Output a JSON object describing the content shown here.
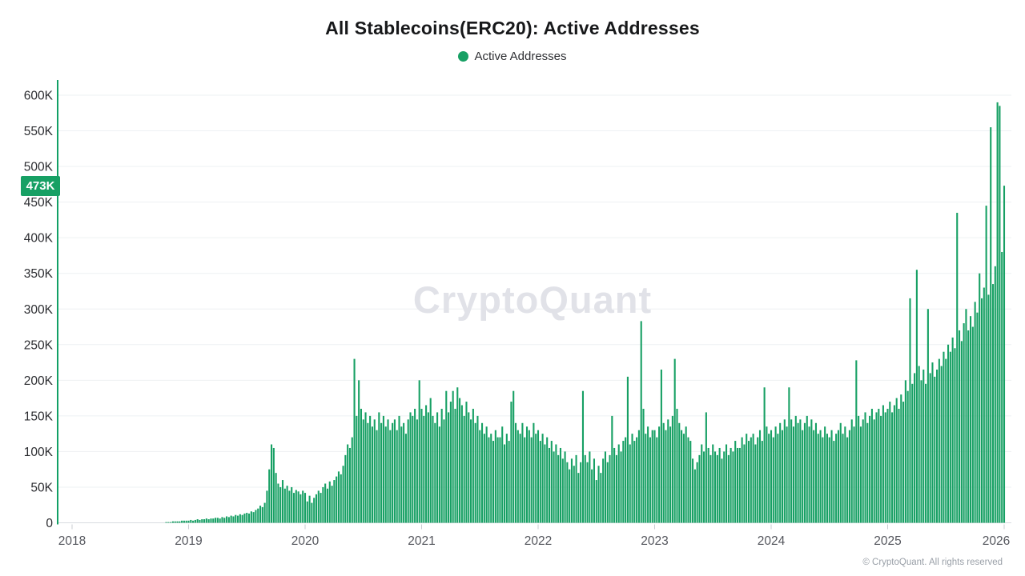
{
  "title": "All Stablecoins(ERC20): Active Addresses",
  "legend": {
    "label": "Active Addresses"
  },
  "watermark": {
    "text": "CryptoQuant"
  },
  "attribution": {
    "text": "© CryptoQuant. All rights reserved"
  },
  "badge": {
    "text": "473K"
  },
  "colors": {
    "bar_green": "#17a064",
    "axis_green": "#12a066",
    "badge_bg": "#17a064",
    "gridline": "#eef0f3",
    "baseline": "#d8dbe0",
    "tick": "#c9ccd2"
  },
  "chart_data": {
    "type": "bar",
    "title": "All Stablecoins(ERC20): Active Addresses",
    "series_name": "Active Addresses",
    "xlabel": "",
    "ylabel": "Active Addresses",
    "grid": true,
    "legend_position": "top-center",
    "x_tick_years": [
      2018,
      2019,
      2020,
      2021,
      2022,
      2023,
      2024,
      2025,
      2026
    ],
    "y_tick_values_k": [
      0,
      50,
      100,
      150,
      200,
      250,
      300,
      350,
      400,
      450,
      500,
      550,
      600
    ],
    "y_tick_labels": [
      "0",
      "50K",
      "100K",
      "150K",
      "200K",
      "250K",
      "300K",
      "350K",
      "400K",
      "450K",
      "500K",
      "550K",
      "600K"
    ],
    "ylim_k": [
      0,
      620
    ],
    "start_year": 2018,
    "points_per_year": 52,
    "unit": "thousands of addresses",
    "last_value_k": 473,
    "values_k": [
      0,
      0,
      0,
      0,
      0,
      0,
      0,
      0,
      0,
      0,
      0,
      0,
      0,
      0,
      0,
      0,
      0,
      0,
      0,
      0,
      0,
      0,
      0,
      0,
      0,
      0,
      0,
      0,
      0,
      0,
      0,
      0,
      0,
      0,
      0,
      0,
      0,
      0,
      0,
      0,
      0,
      0,
      1,
      1,
      1,
      2,
      2,
      2,
      2,
      3,
      3,
      3,
      3,
      4,
      3,
      4,
      5,
      4,
      5,
      5,
      6,
      5,
      6,
      6,
      7,
      7,
      6,
      8,
      7,
      9,
      8,
      10,
      9,
      11,
      10,
      12,
      11,
      13,
      14,
      13,
      16,
      15,
      18,
      20,
      24,
      22,
      28,
      45,
      75,
      110,
      105,
      70,
      55,
      50,
      60,
      48,
      52,
      45,
      50,
      42,
      46,
      44,
      40,
      45,
      42,
      30,
      38,
      28,
      35,
      40,
      45,
      42,
      50,
      55,
      48,
      58,
      52,
      60,
      65,
      72,
      68,
      80,
      95,
      110,
      105,
      120,
      230,
      150,
      200,
      160,
      145,
      155,
      140,
      150,
      135,
      145,
      130,
      155,
      140,
      150,
      135,
      145,
      130,
      140,
      145,
      130,
      150,
      135,
      140,
      125,
      145,
      155,
      150,
      160,
      145,
      200,
      160,
      150,
      165,
      155,
      175,
      150,
      140,
      155,
      135,
      160,
      145,
      185,
      155,
      170,
      185,
      160,
      190,
      175,
      165,
      150,
      170,
      155,
      145,
      160,
      140,
      150,
      130,
      140,
      125,
      135,
      120,
      125,
      115,
      130,
      120,
      120,
      135,
      110,
      125,
      115,
      170,
      185,
      140,
      130,
      125,
      140,
      120,
      135,
      130,
      120,
      140,
      125,
      130,
      115,
      125,
      110,
      120,
      105,
      115,
      100,
      110,
      95,
      105,
      90,
      100,
      85,
      75,
      90,
      80,
      95,
      70,
      85,
      185,
      95,
      85,
      100,
      75,
      90,
      60,
      80,
      70,
      90,
      100,
      85,
      95,
      150,
      105,
      95,
      110,
      100,
      115,
      120,
      205,
      110,
      125,
      115,
      120,
      130,
      283,
      160,
      125,
      135,
      120,
      130,
      130,
      120,
      135,
      215,
      140,
      130,
      145,
      135,
      150,
      230,
      160,
      140,
      130,
      125,
      135,
      120,
      115,
      90,
      75,
      85,
      95,
      110,
      100,
      155,
      105,
      95,
      110,
      100,
      95,
      105,
      90,
      100,
      110,
      95,
      105,
      100,
      115,
      105,
      105,
      120,
      110,
      125,
      115,
      120,
      125,
      110,
      120,
      130,
      115,
      190,
      135,
      125,
      130,
      120,
      135,
      125,
      140,
      130,
      145,
      135,
      190,
      145,
      135,
      150,
      140,
      145,
      130,
      140,
      150,
      135,
      145,
      130,
      140,
      125,
      130,
      120,
      135,
      125,
      120,
      130,
      115,
      125,
      130,
      140,
      125,
      135,
      120,
      130,
      145,
      135,
      228,
      150,
      135,
      145,
      155,
      140,
      150,
      160,
      145,
      155,
      160,
      150,
      165,
      155,
      160,
      170,
      155,
      165,
      175,
      160,
      180,
      170,
      200,
      185,
      315,
      195,
      210,
      355,
      220,
      200,
      215,
      195,
      300,
      210,
      225,
      205,
      215,
      230,
      220,
      240,
      230,
      250,
      240,
      260,
      245,
      435,
      270,
      255,
      280,
      300,
      270,
      290,
      275,
      310,
      295,
      350,
      315,
      330,
      445,
      320,
      555,
      335,
      360,
      590,
      585,
      380,
      473
    ]
  }
}
